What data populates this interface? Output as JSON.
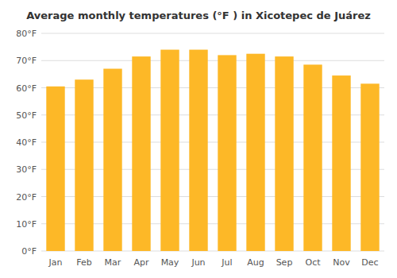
{
  "chart_data": {
    "type": "bar",
    "title": "Average monthly temperatures (°F ) in Xicotepec de Juárez",
    "categories": [
      "Jan",
      "Feb",
      "Mar",
      "Apr",
      "May",
      "Jun",
      "Jul",
      "Aug",
      "Sep",
      "Oct",
      "Nov",
      "Dec"
    ],
    "values": [
      60.5,
      63.0,
      67.0,
      71.5,
      74.0,
      74.0,
      72.0,
      72.5,
      71.5,
      68.5,
      64.5,
      61.5
    ],
    "color": "#FDB827",
    "ylim": [
      0,
      80
    ],
    "yticks": [
      {
        "value": 0,
        "label": "0°F"
      },
      {
        "value": 10,
        "label": "10°F"
      },
      {
        "value": 20,
        "label": "20°F"
      },
      {
        "value": 30,
        "label": "30°F"
      },
      {
        "value": 40,
        "label": "40°F"
      },
      {
        "value": 50,
        "label": "50°F"
      },
      {
        "value": 60,
        "label": "60°F"
      },
      {
        "value": 70,
        "label": "70°F"
      },
      {
        "value": 80,
        "label": "80°F"
      }
    ],
    "grid": true
  }
}
